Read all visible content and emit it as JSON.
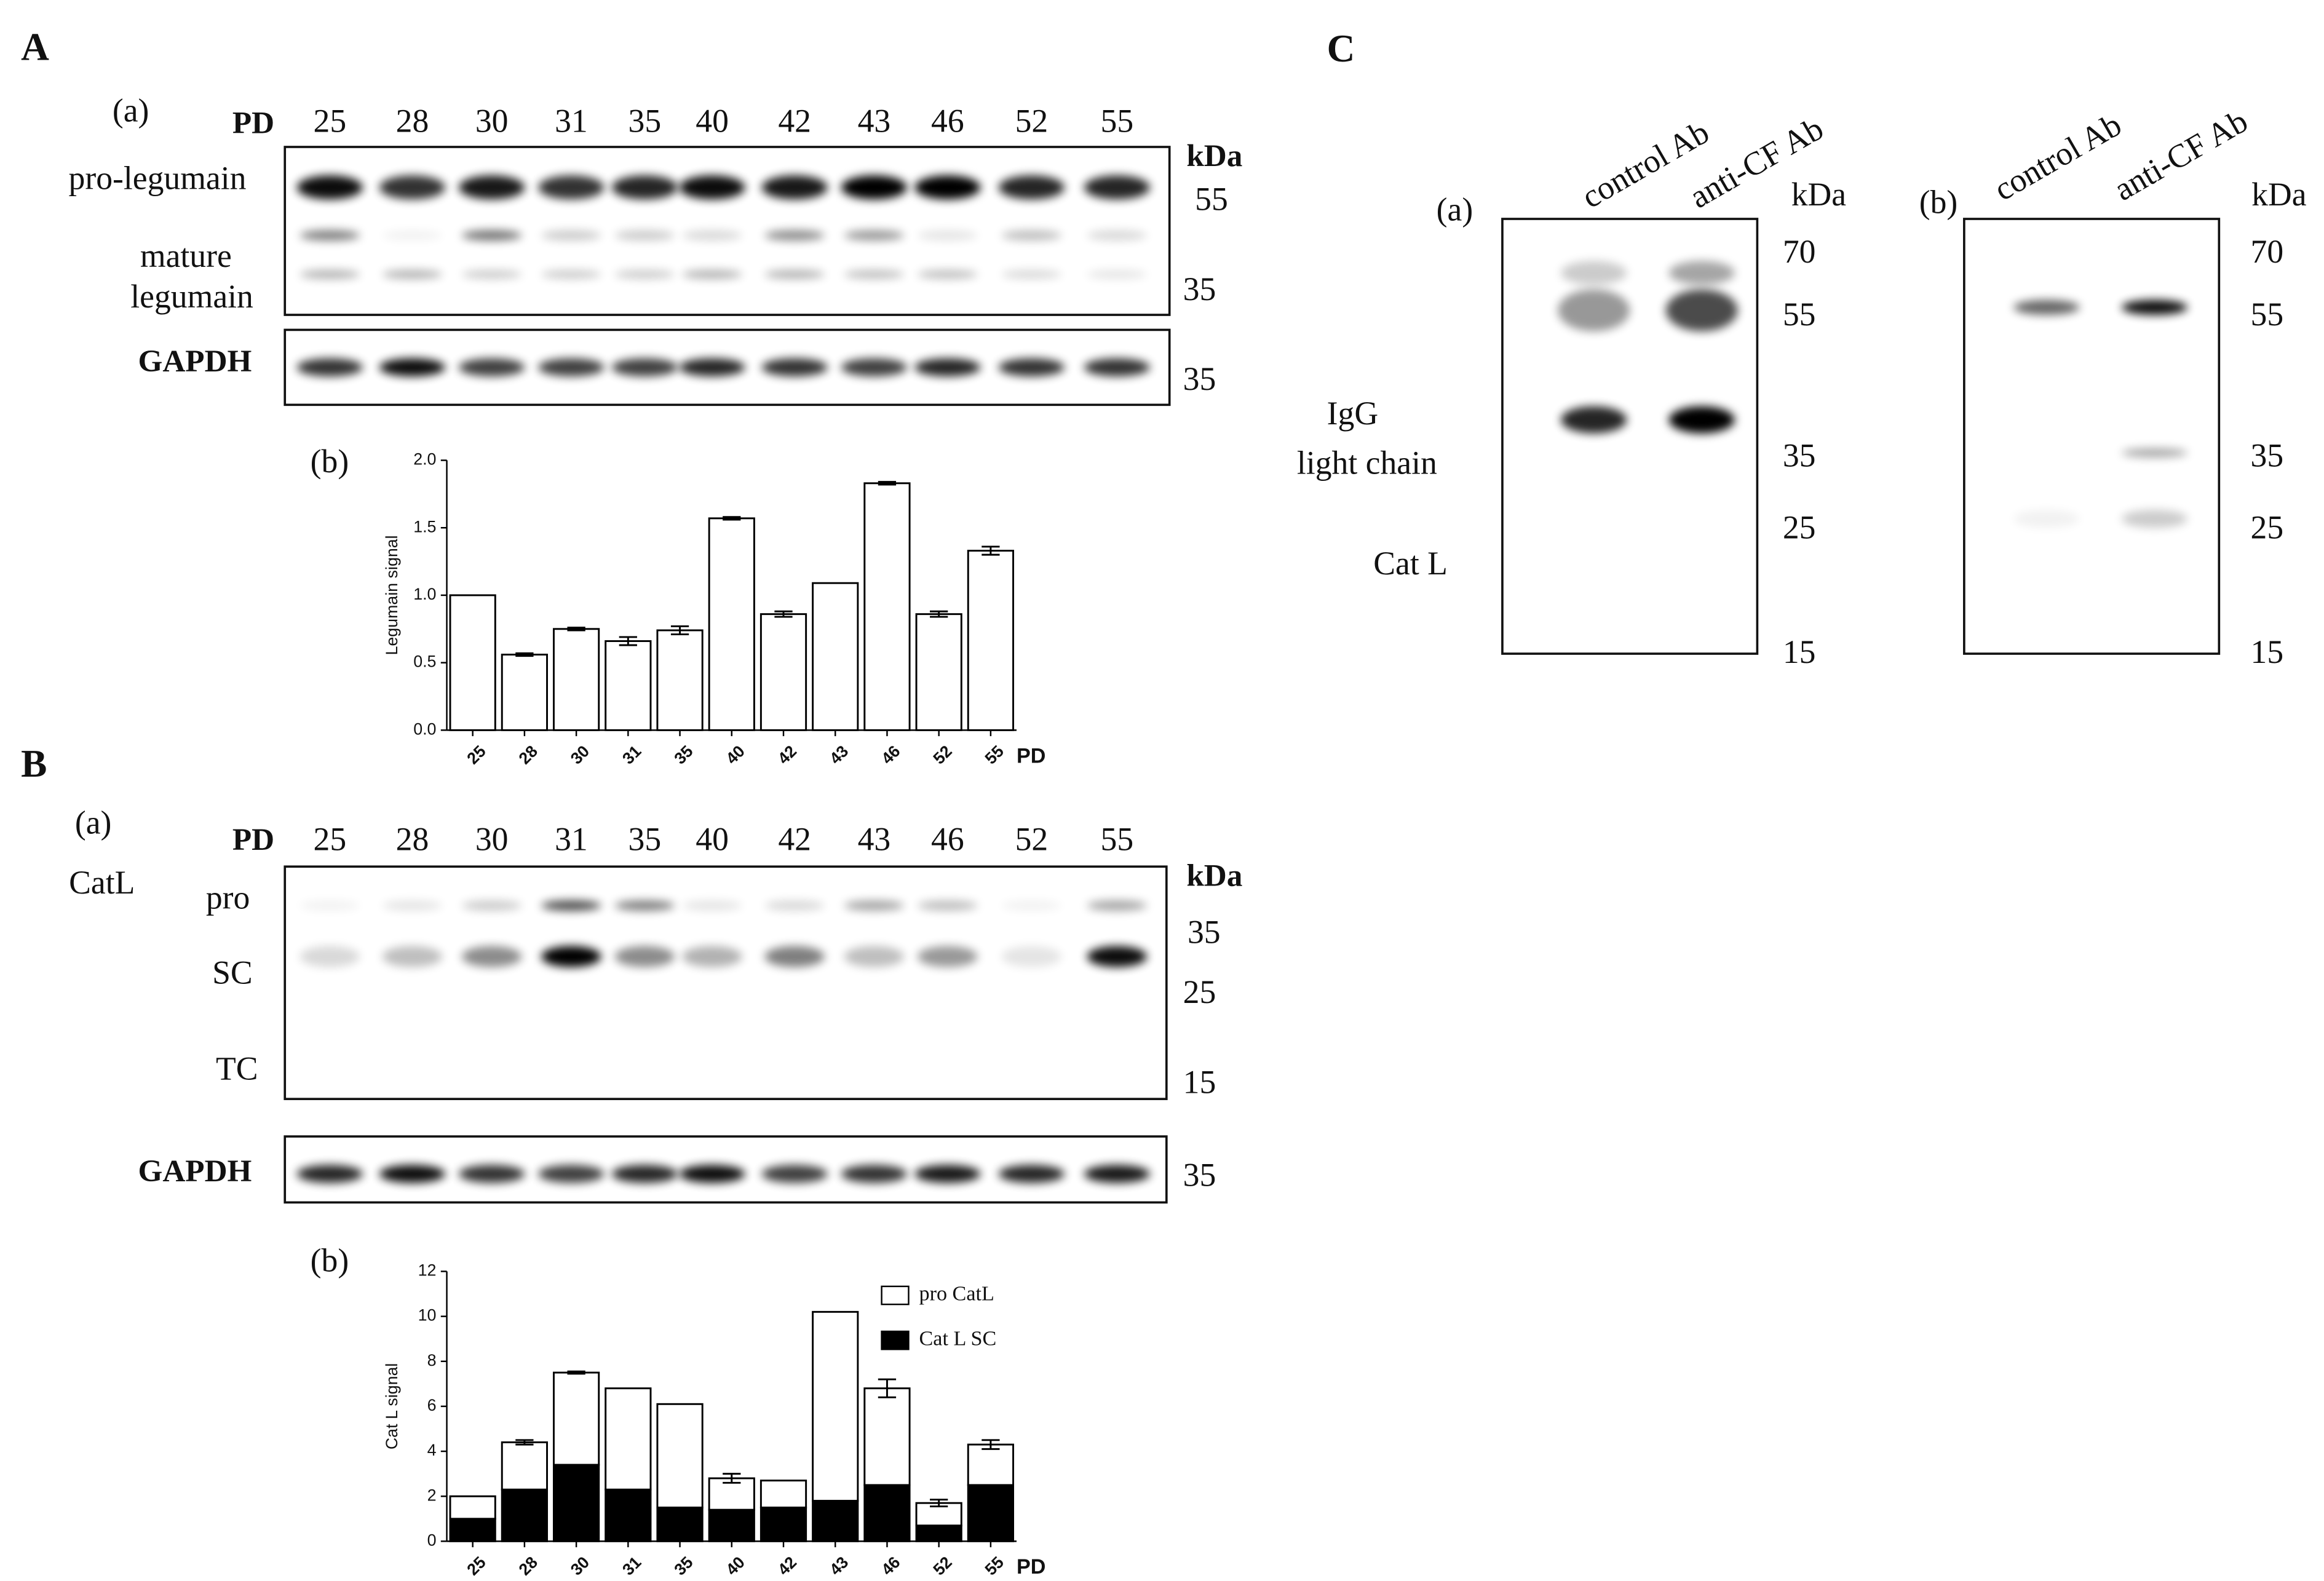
{
  "panel_a": {
    "label": "A",
    "blot_sublabel": "(a)",
    "lane_header": "PD",
    "lanes": [
      "25",
      "28",
      "30",
      "31",
      "35",
      "40",
      "42",
      "43",
      "46",
      "52",
      "55"
    ],
    "unit": "kDa",
    "band_labels": [
      "pro-legumain",
      "mature",
      "legumain"
    ],
    "markers": [
      55,
      35
    ],
    "loading_label": "GAPDH",
    "loading_marker": 35,
    "chart_sublabel": "(b)"
  },
  "panel_b": {
    "label": "B",
    "blot_sublabel": "(a)",
    "lane_header": "PD",
    "protein": "CatL",
    "lanes": [
      "25",
      "28",
      "30",
      "31",
      "35",
      "40",
      "42",
      "43",
      "46",
      "52",
      "55"
    ],
    "unit": "kDa",
    "band_labels": [
      "pro",
      "SC",
      "TC"
    ],
    "markers": [
      35,
      25,
      15
    ],
    "loading_label": "GAPDH",
    "loading_marker": 35,
    "chart_sublabel": "(b)"
  },
  "panel_c": {
    "label": "C",
    "unit": "kDa",
    "band_labels": [
      "IgG",
      "light chain",
      "Cat L"
    ],
    "blots": [
      {
        "sublabel": "(a)",
        "lanes": [
          "control Ab",
          "anti-CF Ab"
        ],
        "markers": [
          70,
          55,
          35,
          25,
          15
        ]
      },
      {
        "sublabel": "(b)",
        "lanes": [
          "control Ab",
          "anti-CF Ab"
        ],
        "markers": [
          70,
          55,
          35,
          25,
          15
        ]
      }
    ]
  },
  "chart_data": [
    {
      "type": "bar",
      "y_label": "Legumain signal",
      "x_label": "PD",
      "categories": [
        "25",
        "28",
        "30",
        "31",
        "35",
        "40",
        "42",
        "43",
        "46",
        "52",
        "55"
      ],
      "values": [
        1.0,
        0.56,
        0.75,
        0.66,
        0.74,
        1.57,
        0.86,
        1.09,
        1.83,
        0.86,
        1.33
      ],
      "errors": [
        0,
        0.01,
        0.01,
        0.03,
        0.03,
        0.01,
        0.02,
        0,
        0.01,
        0.02,
        0.03
      ],
      "color": "#ffffff",
      "ylim": [
        0,
        2
      ],
      "yticks": [
        {
          "value": 0,
          "label": "0.0"
        },
        0.5,
        {
          "value": 1,
          "label": "1.0"
        },
        1.5,
        {
          "value": 2,
          "label": "2.0"
        }
      ]
    },
    {
      "type": "stacked_bar",
      "y_label": "Cat L signal",
      "x_label": "PD",
      "categories": [
        "25",
        "28",
        "30",
        "31",
        "35",
        "40",
        "42",
        "43",
        "46",
        "52",
        "55"
      ],
      "series": [
        {
          "name": "Cat L SC",
          "color": "#000000",
          "values": [
            1.0,
            2.3,
            3.4,
            2.3,
            1.5,
            1.4,
            1.5,
            1.8,
            2.5,
            0.7,
            2.5
          ],
          "errors": [
            0,
            0.15,
            0.15,
            0,
            0.2,
            0.2,
            0,
            0,
            0,
            0,
            0
          ]
        },
        {
          "name": "pro CatL",
          "color": "#ffffff",
          "values": [
            1.0,
            2.1,
            4.1,
            4.5,
            4.6,
            1.4,
            1.2,
            8.4,
            4.3,
            1.0,
            1.8
          ],
          "errors": [
            0,
            0.1,
            0.05,
            0,
            0,
            0.2,
            0,
            0,
            0.4,
            0.15,
            0.2
          ]
        }
      ],
      "ylim": [
        0,
        12
      ],
      "yticks": [
        0,
        2,
        4,
        6,
        8,
        10,
        12
      ]
    }
  ]
}
